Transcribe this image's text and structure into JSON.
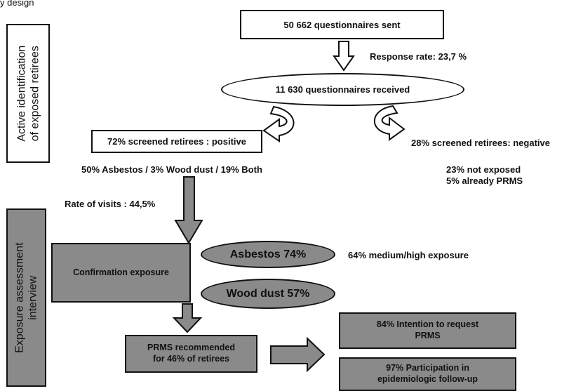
{
  "header_fragment": "y design",
  "side_labels": {
    "top_line1": "Active identification",
    "top_line2": "of exposed retirees",
    "bottom_line1": "Exposure assessment",
    "bottom_line2": "interview"
  },
  "nodes": {
    "sent": "50 662 questionnaires sent",
    "response_rate": "Response rate: 23,7 %",
    "received": "11 630 questionnaires received",
    "positive": "72% screened retirees : positive",
    "negative": "28% screened retirees: negative",
    "positive_breakdown": "50% Asbestos / 3% Wood dust / 19% Both",
    "not_exposed": "23% not exposed",
    "already_prms": "5% already PRMS",
    "visit_rate": "Rate of visits : 44,5%",
    "confirmation": "Confirmation exposure",
    "asbestos": "Asbestos 74%",
    "asbestos_note": "64% medium/high exposure",
    "wood_dust": "Wood dust 57%",
    "prms_line1": "PRMS recommended",
    "prms_line2": "for 46% of retirees",
    "intention_line1": "84% Intention to request",
    "intention_line2": "PRMS",
    "participation_line1": "97% Participation in",
    "participation_line2": "epidemiologic follow-up"
  },
  "colors": {
    "grey_fill": "#8a8a8a",
    "outline": "#111111",
    "background": "#ffffff"
  },
  "icons": [
    "arrow-down-outline-icon",
    "curved-arrow-left-icon",
    "curved-arrow-right-icon",
    "arrow-down-filled-icon",
    "arrow-right-filled-icon"
  ]
}
